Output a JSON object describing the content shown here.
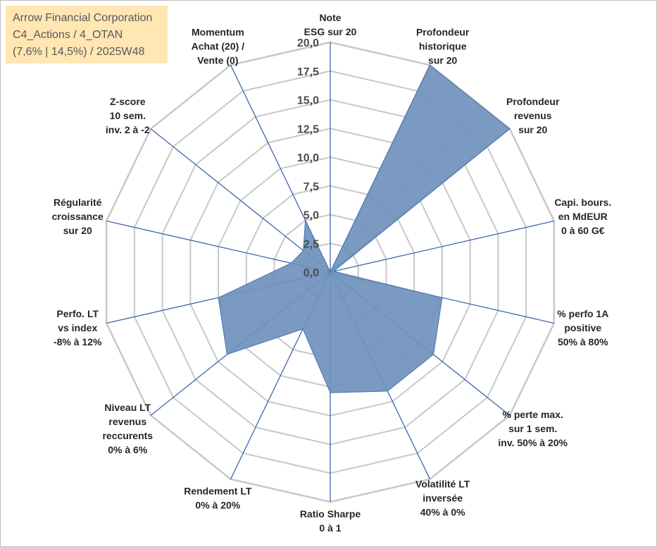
{
  "title_box": {
    "line1": "Arrow Financial Corporation",
    "line2": "C4_Actions / 4_OTAN",
    "line3": "(7,6% | 14,5%) / 2025W48"
  },
  "chart_data": {
    "type": "radar",
    "rmin": 0,
    "rmax": 20,
    "ticks": [
      "0,0",
      "2,5",
      "5,0",
      "7,5",
      "10,0",
      "12,5",
      "15,0",
      "17,5",
      "20,0"
    ],
    "tick_values": [
      0,
      2.5,
      5,
      7.5,
      10,
      12.5,
      15,
      17.5,
      20
    ],
    "grid": true,
    "series_color": "#4a74ad",
    "series_fill": "#6f91bd",
    "axes": [
      {
        "lines": [
          "Note",
          "ESG sur 20"
        ],
        "value": 0
      },
      {
        "lines": [
          "Profondeur",
          "historique",
          "sur 20"
        ],
        "value": 20
      },
      {
        "lines": [
          "Profondeur",
          "revenus",
          "sur 20"
        ],
        "value": 20
      },
      {
        "lines": [
          "Capi. bours.",
          "en MdEUR",
          "0 à 60 G€"
        ],
        "value": 0.3
      },
      {
        "lines": [
          "% perfo 1A",
          "positive",
          "50% à 80%"
        ],
        "value": 10
      },
      {
        "lines": [
          "% perte max.",
          "sur 1 sem.",
          "inv. 50% à 20%"
        ],
        "value": 11.5
      },
      {
        "lines": [
          "Volatilité LT",
          "inversée",
          "40% à 0%"
        ],
        "value": 11.5
      },
      {
        "lines": [
          "Ratio Sharpe",
          "0 à 1"
        ],
        "value": 10.5
      },
      {
        "lines": [
          "Rendement LT",
          "0% à 20%"
        ],
        "value": 5.5
      },
      {
        "lines": [
          "Niveau LT",
          "revenus",
          "reccurents",
          "0% à 6%"
        ],
        "value": 11.5
      },
      {
        "lines": [
          "Perfo. LT",
          "vs index",
          "-8% à 12%"
        ],
        "value": 10
      },
      {
        "lines": [
          "Régularité",
          "croissance",
          "sur 20"
        ],
        "value": 3.5
      },
      {
        "lines": [
          "Z-score",
          "10 sem.",
          "inv. 2 à -2"
        ],
        "value": 3
      },
      {
        "lines": [
          "Momentum",
          "Achat (20) /",
          "Vente (0)"
        ],
        "value": 5
      }
    ]
  }
}
